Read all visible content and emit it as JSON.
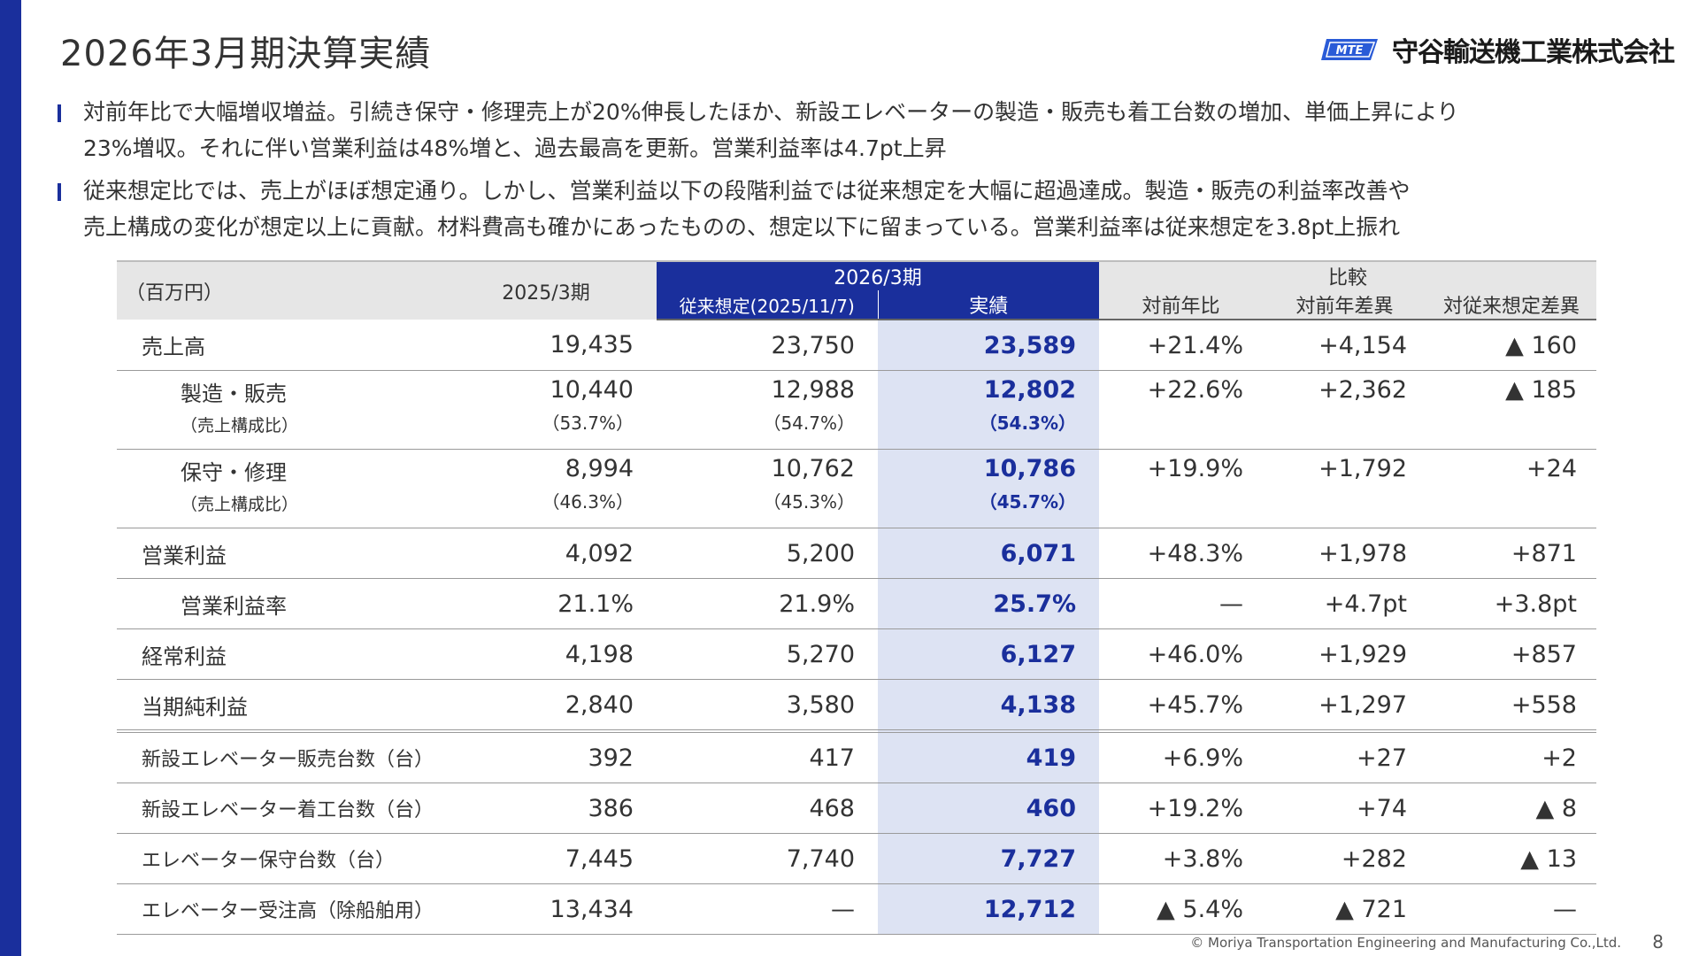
{
  "title": "2026年3月期決算実績",
  "logo": {
    "mark": "MTE",
    "company": "守谷輸送機工業株式会社",
    "mark_color": "#2a5bd7"
  },
  "bullets": [
    {
      "line1": "対前年比で大幅増収増益。引続き保守・修理売上が20%伸長したほか、新設エレベーターの製造・販売も着工台数の増加、単価上昇により",
      "line2": "23%増収。それに伴い営業利益は48%増と、過去最高を更新。営業利益率は4.7pt上昇"
    },
    {
      "line1": "従来想定比では、売上がほぼ想定通り。しかし、営業利益以下の段階利益では従来想定を大幅に超過達成。製造・販売の利益率改善や",
      "line2": "売上構成の変化が想定以上に貢献。材料費高も確かにあったものの、想定以下に留まっている。営業利益率は従来想定を3.8pt上振れ"
    }
  ],
  "table": {
    "header": {
      "unit": "（百万円）",
      "fy2025": "2025/3期",
      "fy2026": "2026/3期",
      "plan": "従来想定(2025/11/7)",
      "actual": "実績",
      "compare": "比較",
      "yoy_pct": "対前年比",
      "yoy_diff": "対前年差異",
      "plan_diff": "対従来想定差異"
    },
    "rows": [
      {
        "label": "売上高",
        "v2025": "19,435",
        "plan": "23,750",
        "actual": "23,589",
        "yoy": "+21.4%",
        "diff": "+4,154",
        "pdiff": "▲ 160"
      },
      {
        "label": "製造・販売",
        "sublabel": "（売上構成比）",
        "v2025": "10,440",
        "s2025": "（53.7%）",
        "plan": "12,988",
        "splan": "（54.7%）",
        "actual": "12,802",
        "sactual": "（54.3%）",
        "yoy": "+22.6%",
        "diff": "+2,362",
        "pdiff": "▲ 185"
      },
      {
        "label": "保守・修理",
        "sublabel": "（売上構成比）",
        "v2025": "8,994",
        "s2025": "（46.3%）",
        "plan": "10,762",
        "splan": "（45.3%）",
        "actual": "10,786",
        "sactual": "（45.7%）",
        "yoy": "+19.9%",
        "diff": "+1,792",
        "pdiff": "+24"
      },
      {
        "label": "営業利益",
        "v2025": "4,092",
        "plan": "5,200",
        "actual": "6,071",
        "yoy": "+48.3%",
        "diff": "+1,978",
        "pdiff": "+871"
      },
      {
        "label": "営業利益率",
        "v2025": "21.1%",
        "plan": "21.9%",
        "actual": "25.7%",
        "yoy": "—",
        "diff": "+4.7pt",
        "pdiff": "+3.8pt"
      },
      {
        "label": "経常利益",
        "v2025": "4,198",
        "plan": "5,270",
        "actual": "6,127",
        "yoy": "+46.0%",
        "diff": "+1,929",
        "pdiff": "+857"
      },
      {
        "label": "当期純利益",
        "v2025": "2,840",
        "plan": "3,580",
        "actual": "4,138",
        "yoy": "+45.7%",
        "diff": "+1,297",
        "pdiff": "+558"
      },
      {
        "label": "新設エレベーター販売台数（台）",
        "v2025": "392",
        "plan": "417",
        "actual": "419",
        "yoy": "+6.9%",
        "diff": "+27",
        "pdiff": "+2"
      },
      {
        "label": "新設エレベーター着工台数（台）",
        "v2025": "386",
        "plan": "468",
        "actual": "460",
        "yoy": "+19.2%",
        "diff": "+74",
        "pdiff": "▲ 8"
      },
      {
        "label": "エレベーター保守台数（台）",
        "v2025": "7,445",
        "plan": "7,740",
        "actual": "7,727",
        "yoy": "+3.8%",
        "diff": "+282",
        "pdiff": "▲ 13"
      },
      {
        "label": "エレベーター受注高（除船舶用）",
        "v2025": "13,434",
        "plan": "—",
        "actual": "12,712",
        "yoy": "▲ 5.4%",
        "diff": "▲ 721",
        "pdiff": "—"
      }
    ]
  },
  "footer": {
    "copyright": "© Moriya Transportation Engineering and Manufacturing Co.,Ltd.",
    "page": "8"
  },
  "colors": {
    "brand_blue": "#1a2f9c",
    "actual_bg": "#dde3f3",
    "header_gray": "#e6e6e6"
  }
}
